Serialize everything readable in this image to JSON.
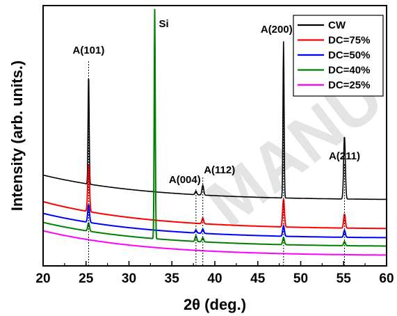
{
  "chart_data": {
    "type": "line",
    "xlabel": "2θ (deg.)",
    "ylabel": "Intensity (arb. units.)",
    "xlim": [
      20,
      60
    ],
    "xticks": [
      "20",
      "25",
      "30",
      "35",
      "40",
      "45",
      "50",
      "55",
      "60"
    ],
    "grid": false,
    "legend_position": "top-right",
    "watermark": "MANU",
    "series": [
      {
        "name": "CW",
        "color": "#000000",
        "base_start": 250,
        "base_end": 288,
        "peaks": [
          [
            25.3,
            158
          ],
          [
            37.8,
            5
          ],
          [
            38.6,
            14
          ],
          [
            48.0,
            225
          ],
          [
            55.1,
            90
          ]
        ]
      },
      {
        "name": "DC=75%",
        "color": "#ff0000",
        "base_start": 288,
        "base_end": 330,
        "peaks": [
          [
            25.3,
            68
          ],
          [
            38.6,
            8
          ],
          [
            48.0,
            40
          ],
          [
            55.1,
            20
          ]
        ]
      },
      {
        "name": "DC=50%",
        "color": "#0000ff",
        "base_start": 305,
        "base_end": 343,
        "peaks": [
          [
            25.3,
            25
          ],
          [
            37.8,
            4
          ],
          [
            38.6,
            6
          ],
          [
            48.0,
            15
          ],
          [
            55.1,
            10
          ]
        ]
      },
      {
        "name": "DC=40%",
        "color": "#008000",
        "base_start": 318,
        "base_end": 355,
        "peaks": [
          [
            25.3,
            12
          ],
          [
            33.0,
            330
          ],
          [
            37.8,
            8
          ],
          [
            38.6,
            6
          ],
          [
            48.0,
            10
          ],
          [
            55.1,
            6
          ]
        ]
      },
      {
        "name": "DC=25%",
        "color": "#ff00ff",
        "base_start": 330,
        "base_end": 368,
        "peaks": []
      }
    ],
    "annotations": [
      {
        "text": "A(101)",
        "x": 25.3
      },
      {
        "text": "Si",
        "x": 33.0
      },
      {
        "text": "A(004)",
        "x": 37.8
      },
      {
        "text": "A(112)",
        "x": 38.6
      },
      {
        "text": "A(200)",
        "x": 48.0
      },
      {
        "text": "A(211)",
        "x": 55.1
      }
    ]
  }
}
